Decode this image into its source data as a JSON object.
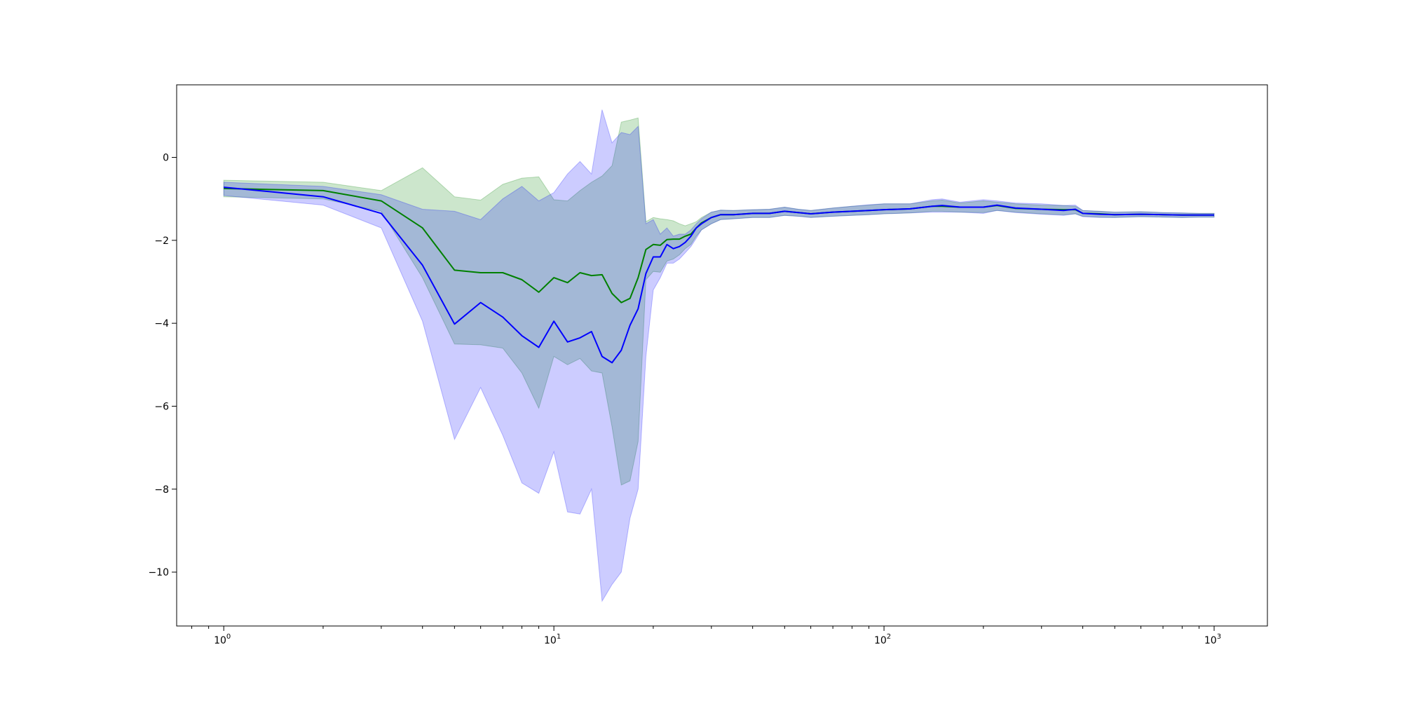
{
  "chart_data": {
    "type": "line",
    "title": "",
    "xlabel": "",
    "ylabel": "",
    "xscale": "log",
    "xlim": [
      0.72,
      1450
    ],
    "ylim": [
      -11.3,
      1.75
    ],
    "grid": false,
    "legend": "none",
    "x_ticks": [
      {
        "value": 1,
        "base": "10",
        "exp": "0"
      },
      {
        "value": 10,
        "base": "10",
        "exp": "1"
      },
      {
        "value": 100,
        "base": "10",
        "exp": "2"
      },
      {
        "value": 1000,
        "base": "10",
        "exp": "3"
      }
    ],
    "y_ticks": [
      {
        "value": 0,
        "label": "0"
      },
      {
        "value": -2,
        "label": "−2"
      },
      {
        "value": -4,
        "label": "−4"
      },
      {
        "value": -6,
        "label": "−6"
      },
      {
        "value": -8,
        "label": "−8"
      },
      {
        "value": -10,
        "label": "−10"
      }
    ],
    "series": [
      {
        "color": "#008000",
        "band_color": "#008000",
        "band_opacity": 0.2,
        "x": [
          1,
          2,
          3,
          4,
          5,
          6,
          7,
          8,
          9,
          10,
          11,
          12,
          13,
          14,
          15,
          16,
          17,
          18,
          19,
          20,
          21,
          22,
          23,
          24,
          25,
          26,
          27,
          28,
          30,
          32,
          35,
          40,
          45,
          50,
          55,
          60,
          70,
          80,
          90,
          100,
          120,
          140,
          150,
          170,
          200,
          220,
          250,
          300,
          350,
          380,
          400,
          450,
          500,
          600,
          700,
          800,
          900,
          1000
        ],
        "mean": [
          -0.75,
          -0.8,
          -1.05,
          -1.7,
          -2.72,
          -2.78,
          -2.78,
          -2.95,
          -3.25,
          -2.9,
          -3.02,
          -2.78,
          -2.85,
          -2.83,
          -3.28,
          -3.5,
          -3.4,
          -2.9,
          -2.22,
          -2.1,
          -2.12,
          -1.98,
          -1.97,
          -1.97,
          -1.9,
          -1.85,
          -1.7,
          -1.58,
          -1.45,
          -1.38,
          -1.38,
          -1.35,
          -1.35,
          -1.3,
          -1.33,
          -1.36,
          -1.32,
          -1.3,
          -1.28,
          -1.26,
          -1.24,
          -1.18,
          -1.18,
          -1.2,
          -1.2,
          -1.16,
          -1.23,
          -1.25,
          -1.26,
          -1.26,
          -1.35,
          -1.36,
          -1.38,
          -1.37,
          -1.38,
          -1.39,
          -1.39,
          -1.39
        ],
        "upper": [
          -0.55,
          -0.6,
          -0.8,
          -0.25,
          -0.95,
          -1.03,
          -0.65,
          -0.5,
          -0.47,
          -1.02,
          -1.05,
          -0.8,
          -0.6,
          -0.45,
          -0.2,
          0.85,
          0.9,
          0.95,
          -1.55,
          -1.45,
          -1.48,
          -1.5,
          -1.53,
          -1.6,
          -1.65,
          -1.6,
          -1.55,
          -1.45,
          -1.32,
          -1.27,
          -1.28,
          -1.26,
          -1.25,
          -1.2,
          -1.25,
          -1.28,
          -1.22,
          -1.18,
          -1.15,
          -1.12,
          -1.12,
          -1.05,
          -1.03,
          -1.1,
          -1.05,
          -1.08,
          -1.12,
          -1.15,
          -1.16,
          -1.18,
          -1.28,
          -1.3,
          -1.32,
          -1.31,
          -1.33,
          -1.34,
          -1.35,
          -1.35
        ],
        "lower": [
          -0.95,
          -1.0,
          -1.3,
          -2.9,
          -4.5,
          -4.52,
          -4.6,
          -5.2,
          -6.05,
          -4.8,
          -5.0,
          -4.85,
          -5.15,
          -5.2,
          -6.5,
          -7.9,
          -7.8,
          -6.85,
          -2.95,
          -2.75,
          -2.77,
          -2.5,
          -2.45,
          -2.35,
          -2.2,
          -2.1,
          -1.9,
          -1.75,
          -1.6,
          -1.5,
          -1.48,
          -1.45,
          -1.45,
          -1.4,
          -1.42,
          -1.45,
          -1.42,
          -1.4,
          -1.38,
          -1.36,
          -1.34,
          -1.3,
          -1.3,
          -1.32,
          -1.33,
          -1.28,
          -1.32,
          -1.36,
          -1.38,
          -1.36,
          -1.42,
          -1.44,
          -1.45,
          -1.43,
          -1.44,
          -1.45,
          -1.44,
          -1.44
        ]
      },
      {
        "color": "#0000ff",
        "band_color": "#0000ff",
        "band_opacity": 0.2,
        "x": [
          1,
          2,
          3,
          4,
          5,
          6,
          7,
          8,
          9,
          10,
          11,
          12,
          13,
          14,
          15,
          16,
          17,
          18,
          19,
          20,
          21,
          22,
          23,
          24,
          25,
          26,
          27,
          28,
          30,
          32,
          35,
          40,
          45,
          50,
          55,
          60,
          70,
          80,
          90,
          100,
          120,
          140,
          150,
          170,
          200,
          220,
          250,
          300,
          350,
          380,
          400,
          450,
          500,
          600,
          700,
          800,
          900,
          1000
        ],
        "mean": [
          -0.72,
          -0.95,
          -1.35,
          -2.6,
          -4.02,
          -3.5,
          -3.85,
          -4.3,
          -4.58,
          -3.95,
          -4.45,
          -4.35,
          -4.2,
          -4.8,
          -4.95,
          -4.65,
          -4.05,
          -3.65,
          -2.8,
          -2.4,
          -2.4,
          -2.1,
          -2.2,
          -2.15,
          -2.05,
          -1.9,
          -1.7,
          -1.6,
          -1.45,
          -1.38,
          -1.38,
          -1.35,
          -1.35,
          -1.3,
          -1.33,
          -1.36,
          -1.32,
          -1.3,
          -1.28,
          -1.26,
          -1.24,
          -1.18,
          -1.16,
          -1.2,
          -1.2,
          -1.15,
          -1.22,
          -1.25,
          -1.28,
          -1.25,
          -1.35,
          -1.37,
          -1.38,
          -1.37,
          -1.38,
          -1.39,
          -1.39,
          -1.39
        ],
        "upper": [
          -0.6,
          -0.7,
          -0.9,
          -1.25,
          -1.3,
          -1.5,
          -1.0,
          -0.7,
          -1.05,
          -0.85,
          -0.4,
          -0.1,
          -0.4,
          1.15,
          0.35,
          0.6,
          0.55,
          0.75,
          -1.6,
          -1.5,
          -1.85,
          -1.7,
          -1.9,
          -1.85,
          -1.85,
          -1.75,
          -1.6,
          -1.48,
          -1.32,
          -1.27,
          -1.28,
          -1.26,
          -1.25,
          -1.2,
          -1.25,
          -1.28,
          -1.22,
          -1.18,
          -1.14,
          -1.12,
          -1.12,
          -1.02,
          -1.0,
          -1.08,
          -1.02,
          -1.05,
          -1.1,
          -1.12,
          -1.16,
          -1.15,
          -1.28,
          -1.3,
          -1.32,
          -1.31,
          -1.33,
          -1.34,
          -1.35,
          -1.35
        ],
        "lower": [
          -0.92,
          -1.15,
          -1.7,
          -3.95,
          -6.8,
          -5.55,
          -6.7,
          -7.85,
          -8.1,
          -7.1,
          -8.55,
          -8.6,
          -8.0,
          -10.7,
          -10.3,
          -10.0,
          -8.7,
          -8.0,
          -4.8,
          -3.2,
          -2.9,
          -2.55,
          -2.55,
          -2.45,
          -2.3,
          -2.15,
          -1.95,
          -1.75,
          -1.6,
          -1.5,
          -1.48,
          -1.45,
          -1.45,
          -1.4,
          -1.42,
          -1.45,
          -1.42,
          -1.4,
          -1.38,
          -1.36,
          -1.34,
          -1.32,
          -1.32,
          -1.32,
          -1.35,
          -1.28,
          -1.33,
          -1.37,
          -1.4,
          -1.36,
          -1.43,
          -1.45,
          -1.45,
          -1.43,
          -1.44,
          -1.45,
          -1.44,
          -1.44
        ]
      }
    ]
  }
}
